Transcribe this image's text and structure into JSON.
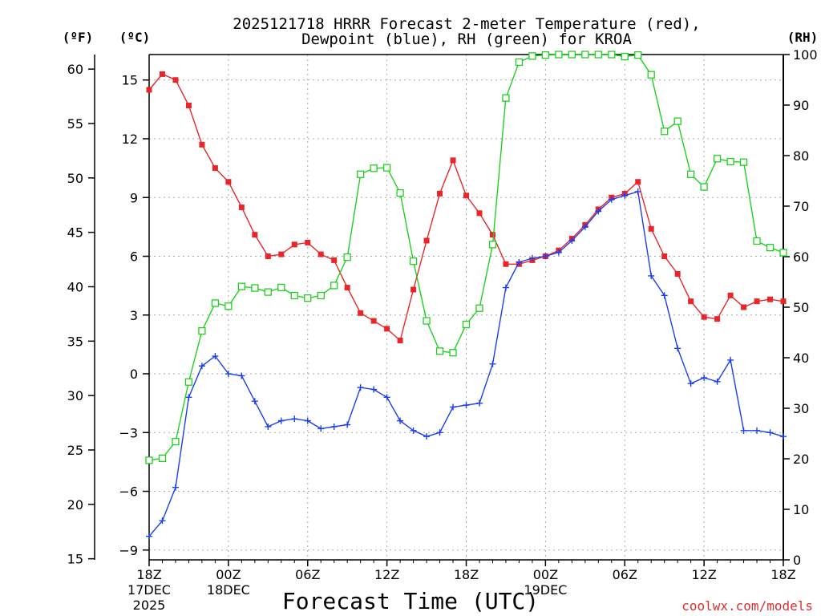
{
  "chart_data": {
    "type": "line",
    "title_line1": "2025121718 HRRR Forecast 2-meter Temperature (red),",
    "title_line2": "Dewpoint (blue), RH (green) for KROA",
    "xlabel": "Forecast Time (UTC)",
    "unit_f": "(ºF)",
    "unit_c": "(ºC)",
    "unit_rh": "(RH)",
    "watermark": "coolwx.com/models",
    "xlim": [
      0,
      48
    ],
    "ylim_c": [
      -9.5,
      16.3
    ],
    "ylim_rh": [
      0,
      100
    ],
    "celsius_ticks": [
      "15",
      "12",
      "9",
      "6",
      "3",
      "0",
      "−3",
      "−6",
      "−9"
    ],
    "celsius_tick_values": [
      15,
      12,
      9,
      6,
      3,
      0,
      -3,
      -6,
      -9
    ],
    "fahrenheit_ticks": [
      "60",
      "55",
      "50",
      "45",
      "40",
      "35",
      "30",
      "25",
      "20",
      "15"
    ],
    "fahrenheit_tick_values": [
      60,
      55,
      50,
      45,
      40,
      35,
      30,
      25,
      20,
      15
    ],
    "rh_ticks": [
      "100",
      "90",
      "80",
      "70",
      "60",
      "50",
      "40",
      "30",
      "20",
      "10",
      "0"
    ],
    "rh_tick_values": [
      100,
      90,
      80,
      70,
      60,
      50,
      40,
      30,
      20,
      10,
      0
    ],
    "x_ticks": [
      {
        "hour": 0,
        "lines": [
          "18Z",
          "17DEC",
          "2025"
        ]
      },
      {
        "hour": 6,
        "lines": [
          "00Z",
          "18DEC"
        ]
      },
      {
        "hour": 12,
        "lines": [
          "06Z"
        ]
      },
      {
        "hour": 18,
        "lines": [
          "12Z"
        ]
      },
      {
        "hour": 24,
        "lines": [
          "18Z"
        ]
      },
      {
        "hour": 30,
        "lines": [
          "00Z",
          "19DEC"
        ]
      },
      {
        "hour": 36,
        "lines": [
          "06Z"
        ]
      },
      {
        "hour": 42,
        "lines": [
          "12Z"
        ]
      },
      {
        "hour": 48,
        "lines": [
          "18Z"
        ]
      }
    ],
    "series": [
      {
        "name": "Temperature",
        "color": "#e8262a",
        "marker": "filled-square",
        "axis": "celsius",
        "x": [
          0,
          1,
          2,
          3,
          4,
          5,
          6,
          7,
          8,
          9,
          10,
          11,
          12,
          13,
          14,
          15,
          16,
          17,
          18,
          19,
          20,
          21,
          22,
          23,
          24,
          25,
          26,
          27,
          28,
          29,
          30,
          31,
          32,
          33,
          34,
          35,
          36,
          37,
          38,
          39,
          40,
          41,
          42,
          43,
          44,
          45,
          46,
          47,
          48
        ],
        "values": [
          14.5,
          15.3,
          15.0,
          13.7,
          11.7,
          10.5,
          9.8,
          8.5,
          7.1,
          6.0,
          6.1,
          6.6,
          6.7,
          6.1,
          5.8,
          4.4,
          3.1,
          2.7,
          2.3,
          1.7,
          4.3,
          6.8,
          9.2,
          10.9,
          9.1,
          8.2,
          7.1,
          5.6,
          5.6,
          5.8,
          6.0,
          6.3,
          6.9,
          7.6,
          8.4,
          9.0,
          9.2,
          9.8,
          7.4,
          6.0,
          5.1,
          3.7,
          2.9,
          2.8,
          4.0,
          3.4,
          3.7,
          3.8,
          3.7
        ]
      },
      {
        "name": "Dewpoint",
        "color": "#1c3ff2",
        "marker": "plus",
        "axis": "celsius",
        "x": [
          0,
          1,
          2,
          3,
          4,
          5,
          6,
          7,
          8,
          9,
          10,
          11,
          12,
          13,
          14,
          15,
          16,
          17,
          18,
          19,
          20,
          21,
          22,
          23,
          24,
          25,
          26,
          27,
          28,
          29,
          30,
          31,
          32,
          33,
          34,
          35,
          36,
          37,
          38,
          39,
          40,
          41,
          42,
          43,
          44,
          45,
          46,
          47,
          48
        ],
        "values": [
          -8.3,
          -7.5,
          -5.8,
          -1.2,
          0.4,
          0.9,
          0.0,
          -0.1,
          -1.4,
          -2.7,
          -2.4,
          -2.3,
          -2.4,
          -2.8,
          -2.7,
          -2.6,
          -0.7,
          -0.8,
          -1.2,
          -2.4,
          -2.9,
          -3.2,
          -3.0,
          -1.7,
          -1.6,
          -1.5,
          0.5,
          4.4,
          5.7,
          5.9,
          6.0,
          6.2,
          6.8,
          7.5,
          8.3,
          8.9,
          9.1,
          9.3,
          5.0,
          4.0,
          1.3,
          -0.5,
          -0.2,
          -0.4,
          0.7,
          -2.9,
          -2.9,
          -3.0,
          -3.2
        ]
      },
      {
        "name": "Relative Humidity",
        "color": "#20d020",
        "marker": "open-square",
        "axis": "rh",
        "x": [
          0,
          1,
          2,
          3,
          4,
          5,
          6,
          7,
          8,
          9,
          10,
          11,
          12,
          13,
          14,
          15,
          16,
          17,
          18,
          19,
          20,
          21,
          22,
          23,
          24,
          25,
          26,
          27,
          28,
          29,
          30,
          31,
          32,
          33,
          34,
          35,
          36,
          37,
          38,
          39,
          40,
          41,
          42,
          43,
          44,
          45,
          46,
          47,
          48
        ],
        "values": [
          19.7,
          20.1,
          23.4,
          35.2,
          45.3,
          50.8,
          50.2,
          54.1,
          53.8,
          53.0,
          53.9,
          52.3,
          51.8,
          52.3,
          54.3,
          59.9,
          76.3,
          77.5,
          77.6,
          72.6,
          59.1,
          47.3,
          41.3,
          41.0,
          46.6,
          49.8,
          62.4,
          91.4,
          98.5,
          99.7,
          99.9,
          100,
          100,
          100,
          100,
          100,
          99.6,
          99.9,
          96.0,
          84.8,
          86.8,
          76.3,
          73.8,
          79.4,
          78.8,
          78.7,
          63.1,
          61.8,
          60.8
        ]
      }
    ]
  }
}
